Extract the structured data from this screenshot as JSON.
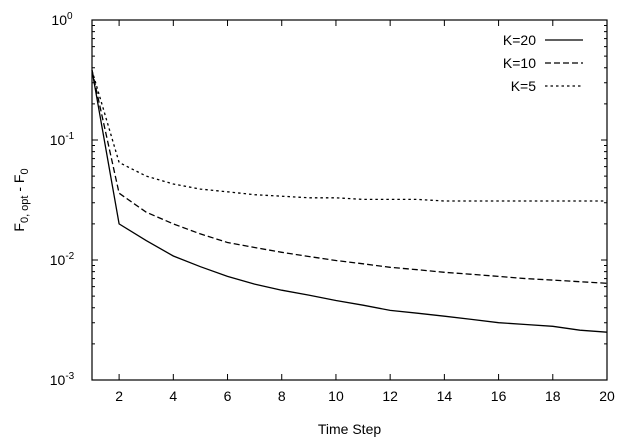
{
  "chart_data": {
    "type": "line",
    "title": "",
    "xlabel": "Time Step",
    "ylabel": {
      "base": "F",
      "sub": "0, opt",
      "mid": " - F",
      "sub2": "0"
    },
    "xlim": [
      1,
      20
    ],
    "ylim": [
      0.001,
      1
    ],
    "yscale": "log",
    "grid": false,
    "legend_position": "top-right",
    "x_ticks": [
      2,
      4,
      6,
      8,
      10,
      12,
      14,
      16,
      18,
      20
    ],
    "y_ticks": [
      {
        "value": 0.001,
        "base": "10",
        "exp": "-3"
      },
      {
        "value": 0.01,
        "base": "10",
        "exp": "-2"
      },
      {
        "value": 0.1,
        "base": "10",
        "exp": "-1"
      },
      {
        "value": 1,
        "base": "10",
        "exp": "0"
      }
    ],
    "x": [
      1,
      2,
      3,
      4,
      5,
      6,
      7,
      8,
      9,
      10,
      11,
      12,
      13,
      14,
      15,
      16,
      17,
      18,
      19,
      20
    ],
    "series": [
      {
        "name": "K=20",
        "dash": "solid",
        "values": [
          0.38,
          0.02,
          0.0145,
          0.0108,
          0.0088,
          0.0073,
          0.0063,
          0.0056,
          0.0051,
          0.0046,
          0.0042,
          0.0038,
          0.0036,
          0.0034,
          0.0032,
          0.003,
          0.0029,
          0.0028,
          0.0026,
          0.0025
        ]
      },
      {
        "name": "K=10",
        "dash": "dashed",
        "values": [
          0.38,
          0.036,
          0.025,
          0.02,
          0.0165,
          0.014,
          0.0127,
          0.0116,
          0.0107,
          0.0099,
          0.0093,
          0.0087,
          0.0083,
          0.0079,
          0.0076,
          0.0073,
          0.007,
          0.0068,
          0.0066,
          0.0064
        ]
      },
      {
        "name": "K=5",
        "dash": "dotted",
        "values": [
          0.38,
          0.065,
          0.05,
          0.043,
          0.039,
          0.037,
          0.035,
          0.034,
          0.033,
          0.033,
          0.032,
          0.032,
          0.032,
          0.031,
          0.031,
          0.031,
          0.031,
          0.031,
          0.031,
          0.031
        ]
      }
    ]
  }
}
